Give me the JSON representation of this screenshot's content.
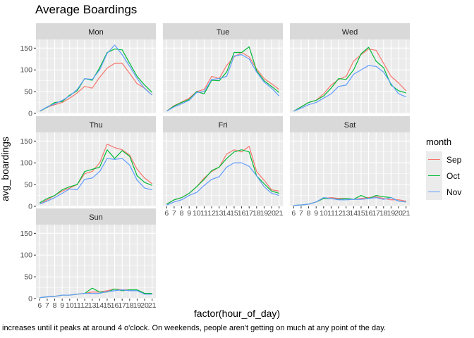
{
  "title": "Average Boardings",
  "xlabel": "factor(hour_of_day)",
  "ylabel": "avg_boardings",
  "caption": "increases until it peaks at around 4 o'clock. On weekends, people aren't getting on much at any point of the day.",
  "legend": {
    "title": "month",
    "items": [
      {
        "label": "Sep",
        "color": "#F8766D"
      },
      {
        "label": "Oct",
        "color": "#00BA38"
      },
      {
        "label": "Nov",
        "color": "#619CFF"
      }
    ]
  },
  "chart_data": {
    "type": "line",
    "facet_by": "day",
    "x": [
      "6",
      "7",
      "8",
      "9",
      "10",
      "11",
      "12",
      "13",
      "14",
      "15",
      "16",
      "17",
      "18",
      "19",
      "20",
      "21"
    ],
    "ylim": [
      0,
      170
    ],
    "yticks": [
      0,
      50,
      100,
      150
    ],
    "grid": true,
    "legend_position": "right",
    "facets": [
      {
        "label": "Mon",
        "series": [
          {
            "name": "Sep",
            "values": [
              5,
              14,
              20,
              25,
              35,
              47,
              62,
              58,
              83,
              104,
              115,
              115,
              92,
              68,
              58,
              42
            ]
          },
          {
            "name": "Oct",
            "values": [
              5,
              14,
              25,
              27,
              42,
              52,
              80,
              76,
              105,
              140,
              148,
              146,
              115,
              85,
              65,
              48
            ]
          },
          {
            "name": "Nov",
            "values": [
              5,
              15,
              22,
              30,
              40,
              55,
              80,
              78,
              100,
              138,
              157,
              135,
              108,
              80,
              57,
              42
            ]
          }
        ]
      },
      {
        "label": "Tue",
        "series": [
          {
            "name": "Sep",
            "values": [
              5,
              18,
              26,
              35,
              50,
              55,
              85,
              80,
              110,
              130,
              140,
              130,
              102,
              80,
              68,
              55
            ]
          },
          {
            "name": "Oct",
            "values": [
              5,
              17,
              25,
              32,
              50,
              45,
              76,
              75,
              95,
              140,
              140,
              153,
              98,
              75,
              62,
              48
            ]
          },
          {
            "name": "Nov",
            "values": [
              5,
              15,
              22,
              30,
              48,
              50,
              78,
              80,
              85,
              132,
              135,
              125,
              95,
              72,
              58,
              40
            ]
          }
        ]
      },
      {
        "label": "Wed",
        "series": [
          {
            "name": "Sep",
            "values": [
              5,
              15,
              25,
              30,
              45,
              65,
              78,
              85,
              120,
              135,
              148,
              145,
              115,
              85,
              70,
              52
            ]
          },
          {
            "name": "Oct",
            "values": [
              5,
              15,
              25,
              30,
              40,
              58,
              80,
              78,
              100,
              137,
              152,
              120,
              105,
              65,
              52,
              47
            ]
          },
          {
            "name": "Nov",
            "values": [
              5,
              12,
              20,
              25,
              35,
              45,
              62,
              65,
              90,
              100,
              110,
              108,
              95,
              68,
              45,
              38
            ]
          }
        ]
      },
      {
        "label": "Thu",
        "series": [
          {
            "name": "Sep",
            "values": [
              5,
              15,
              25,
              35,
              42,
              50,
              75,
              80,
              100,
              143,
              135,
              130,
              118,
              85,
              65,
              52
            ]
          },
          {
            "name": "Oct",
            "values": [
              8,
              18,
              25,
              38,
              45,
              50,
              80,
              85,
              90,
              130,
              110,
              128,
              115,
              70,
              55,
              48
            ]
          },
          {
            "name": "Nov",
            "values": [
              5,
              12,
              20,
              30,
              40,
              38,
              62,
              65,
              80,
              110,
              108,
              110,
              95,
              60,
              42,
              38
            ]
          }
        ]
      },
      {
        "label": "Fri",
        "series": [
          {
            "name": "Sep",
            "values": [
              5,
              15,
              20,
              30,
              45,
              65,
              80,
              90,
              120,
              130,
              125,
              138,
              80,
              60,
              38,
              35
            ]
          },
          {
            "name": "Oct",
            "values": [
              5,
              15,
              20,
              30,
              45,
              62,
              82,
              90,
              110,
              125,
              130,
              125,
              70,
              52,
              35,
              30
            ]
          },
          {
            "name": "Nov",
            "values": [
              3,
              10,
              15,
              25,
              32,
              48,
              62,
              68,
              90,
              100,
              100,
              92,
              70,
              45,
              30,
              25
            ]
          }
        ]
      },
      {
        "label": "Sat",
        "series": [
          {
            "name": "Sep",
            "values": [
              2,
              3,
              5,
              10,
              18,
              20,
              18,
              18,
              16,
              18,
              20,
              22,
              18,
              15,
              15,
              12
            ]
          },
          {
            "name": "Oct",
            "values": [
              2,
              3,
              5,
              10,
              18,
              18,
              16,
              18,
              16,
              25,
              18,
              25,
              22,
              20,
              12,
              10
            ]
          },
          {
            "name": "Nov",
            "values": [
              2,
              3,
              5,
              10,
              20,
              18,
              15,
              15,
              16,
              16,
              18,
              20,
              16,
              20,
              12,
              10
            ]
          }
        ]
      },
      {
        "label": "Sun",
        "series": [
          {
            "name": "Sep",
            "values": [
              2,
              4,
              5,
              8,
              8,
              10,
              12,
              15,
              15,
              18,
              22,
              20,
              20,
              20,
              12,
              12
            ]
          },
          {
            "name": "Oct",
            "values": [
              2,
              4,
              5,
              8,
              8,
              10,
              12,
              24,
              15,
              15,
              22,
              18,
              20,
              20,
              12,
              12
            ]
          },
          {
            "name": "Nov",
            "values": [
              2,
              4,
              5,
              8,
              8,
              10,
              12,
              12,
              12,
              16,
              18,
              20,
              18,
              18,
              10,
              10
            ]
          }
        ]
      }
    ]
  }
}
